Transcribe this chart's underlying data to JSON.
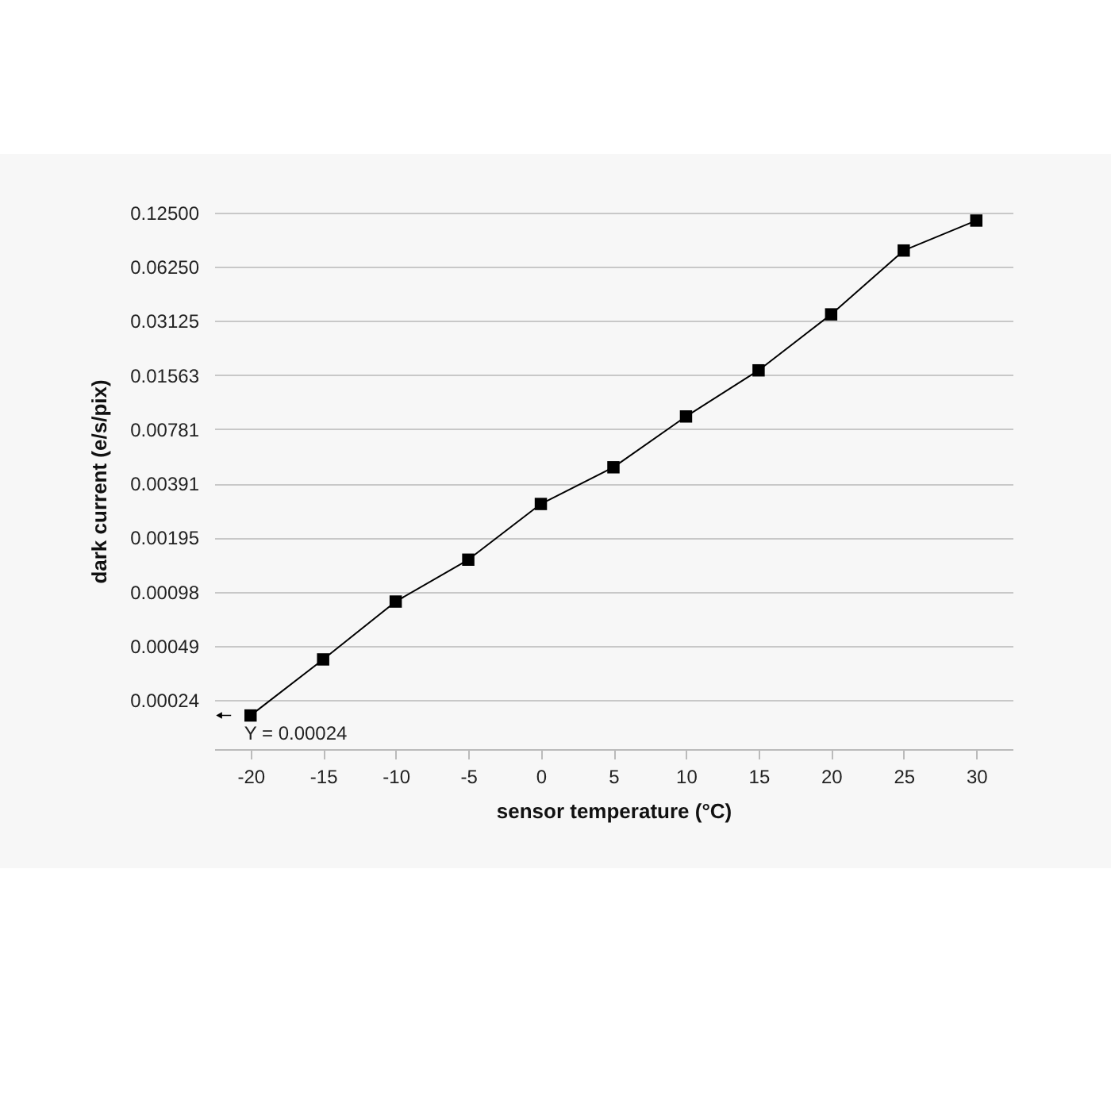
{
  "chart_data": {
    "type": "line",
    "xlabel": "sensor temperature (°C)",
    "ylabel": "dark current (e/s/pix)",
    "categories": [
      "-20",
      "-15",
      "-10",
      "-5",
      "0",
      "5",
      "10",
      "15",
      "20",
      "25",
      "30"
    ],
    "series": [
      {
        "color": "#000000",
        "values": [
          0.0002,
          0.00041,
          0.00086,
          0.00147,
          0.003,
          0.0048,
          0.0092,
          0.0166,
          0.034,
          0.077,
          0.113
        ]
      }
    ],
    "log": true,
    "ylim": [
      0.00013,
      0.125
    ],
    "yticks": [
      {
        "value": 0.000244140625,
        "label": "0.00024"
      },
      {
        "value": 0.00048828125,
        "label": "0.00049"
      },
      {
        "value": 0.0009765625,
        "label": "0.00098"
      },
      {
        "value": 0.001953125,
        "label": "0.00195"
      },
      {
        "value": 0.00390625,
        "label": "0.00391"
      },
      {
        "value": 0.0078125,
        "label": "0.00781"
      },
      {
        "value": 0.015625,
        "label": "0.01563"
      },
      {
        "value": 0.03125,
        "label": "0.03125"
      },
      {
        "value": 0.0625,
        "label": "0.06250"
      },
      {
        "value": 0.125,
        "label": "0.12500"
      }
    ],
    "grid": "y",
    "marker": "square",
    "line_style": "solid",
    "annotations": [
      {
        "text": "Y = 0.00024",
        "x": "-20",
        "y": 0.0002
      }
    ]
  }
}
